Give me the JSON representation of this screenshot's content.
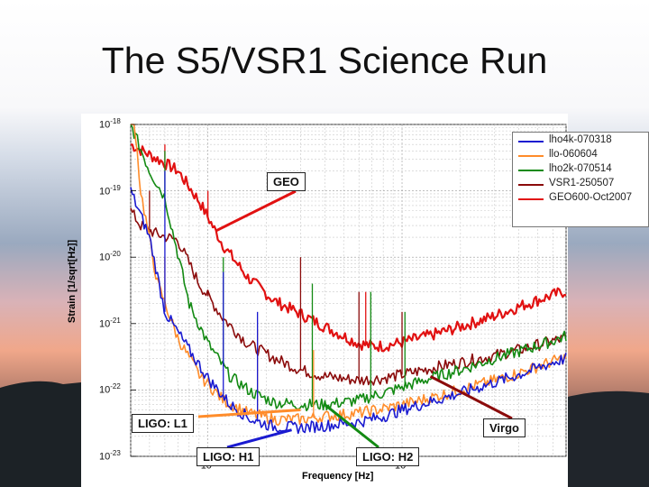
{
  "slide": {
    "title": "The S5/VSR1 Science Run"
  },
  "chart_data": {
    "type": "line",
    "xscale": "log",
    "yscale": "log",
    "xlim": [
      40,
      7000
    ],
    "ylim": [
      1e-23,
      1e-18
    ],
    "xlabel": "Frequency [Hz]",
    "ylabel": "Strain [1/sqrt[Hz]]",
    "y_ticks": [
      {
        "value": 1e-18,
        "base": "10",
        "exp": "-18"
      },
      {
        "value": 1e-19,
        "base": "10",
        "exp": "-19"
      },
      {
        "value": 1e-20,
        "base": "10",
        "exp": "-20"
      },
      {
        "value": 1e-21,
        "base": "10",
        "exp": "-21"
      },
      {
        "value": 1e-22,
        "base": "10",
        "exp": "-22"
      },
      {
        "value": 1e-23,
        "base": "10",
        "exp": "-23"
      }
    ],
    "x_ticks": [
      {
        "value": 100,
        "base": "10",
        "exp": "2"
      },
      {
        "value": 1000,
        "base": "10",
        "exp": "3"
      }
    ],
    "grid": true,
    "legend_position": "top-right",
    "series": [
      {
        "name": "lho4k-070318",
        "color": "#1a1ad0",
        "points": [
          [
            40,
            1e-19
          ],
          [
            50,
            2e-20
          ],
          [
            60,
            1.5e-21
          ],
          [
            80,
            4e-22
          ],
          [
            100,
            1.5e-22
          ],
          [
            130,
            6e-23
          ],
          [
            170,
            3.5e-23
          ],
          [
            220,
            2.8e-23
          ],
          [
            300,
            2.7e-23
          ],
          [
            400,
            2.9e-23
          ],
          [
            600,
            3.3e-23
          ],
          [
            800,
            4e-23
          ],
          [
            1000,
            5e-23
          ],
          [
            1500,
            7e-23
          ],
          [
            2000,
            9e-23
          ],
          [
            3000,
            1.3e-22
          ],
          [
            4000,
            1.7e-22
          ],
          [
            6000,
            2.6e-22
          ],
          [
            7000,
            3e-22
          ]
        ],
        "lines": [
          [
            60,
            2e-19
          ],
          [
            120,
            6e-21
          ],
          [
            180,
            1.5e-21
          ]
        ]
      },
      {
        "name": "llo-060604",
        "color": "#ff8c2a",
        "points": [
          [
            40,
            5e-18
          ],
          [
            45,
            1e-19
          ],
          [
            55,
            4e-21
          ],
          [
            70,
            6e-22
          ],
          [
            90,
            1.7e-22
          ],
          [
            120,
            7e-23
          ],
          [
            160,
            4.5e-23
          ],
          [
            220,
            3.6e-23
          ],
          [
            300,
            3.6e-23
          ],
          [
            400,
            4e-23
          ],
          [
            600,
            4.5e-23
          ],
          [
            800,
            5.2e-23
          ],
          [
            1000,
            6e-23
          ],
          [
            1500,
            8e-23
          ],
          [
            2000,
            1e-22
          ],
          [
            3000,
            1.4e-22
          ],
          [
            4000,
            1.8e-22
          ],
          [
            6000,
            2.7e-22
          ],
          [
            7000,
            3.1e-22
          ]
        ],
        "lines": [
          [
            60,
            1e-20
          ],
          [
            180,
            8e-22
          ],
          [
            350,
            4e-22
          ]
        ]
      },
      {
        "name": "lho2k-070514",
        "color": "#138a13",
        "points": [
          [
            40,
            1e-18
          ],
          [
            50,
            2e-19
          ],
          [
            60,
            8e-20
          ],
          [
            80,
            2e-21
          ],
          [
            100,
            5e-22
          ],
          [
            130,
            1.6e-22
          ],
          [
            170,
            9e-23
          ],
          [
            220,
            6.5e-23
          ],
          [
            300,
            6e-23
          ],
          [
            400,
            6e-23
          ],
          [
            600,
            7e-23
          ],
          [
            800,
            9e-23
          ],
          [
            1000,
            1.1e-22
          ],
          [
            1500,
            1.6e-22
          ],
          [
            2000,
            2e-22
          ],
          [
            3000,
            3e-22
          ],
          [
            4000,
            3.8e-22
          ],
          [
            6000,
            5.5e-22
          ],
          [
            7000,
            6.5e-22
          ]
        ],
        "lines": [
          [
            60,
            4e-19
          ],
          [
            120,
            1e-20
          ],
          [
            345,
            4e-21
          ],
          [
            690,
            3e-21
          ],
          [
            1035,
            1.5e-21
          ]
        ]
      },
      {
        "name": "VSR1-250507",
        "color": "#8b0b0b",
        "points": [
          [
            40,
            5e-20
          ],
          [
            45,
            3e-20
          ],
          [
            55,
            2.2e-20
          ],
          [
            70,
            1.8e-20
          ],
          [
            90,
            4e-21
          ],
          [
            120,
            1.2e-21
          ],
          [
            160,
            5e-22
          ],
          [
            220,
            3e-22
          ],
          [
            300,
            2e-22
          ],
          [
            400,
            1.6e-22
          ],
          [
            600,
            1.4e-22
          ],
          [
            800,
            1.5e-22
          ],
          [
            1000,
            1.7e-22
          ],
          [
            1500,
            2.2e-22
          ],
          [
            2000,
            2.6e-22
          ],
          [
            3000,
            3.3e-22
          ],
          [
            4000,
            4e-22
          ],
          [
            6000,
            5.5e-22
          ],
          [
            7000,
            6e-22
          ]
        ],
        "lines": [
          [
            50,
            1e-19
          ],
          [
            100,
            3e-21
          ],
          [
            300,
            1e-20
          ],
          [
            600,
            3e-21
          ],
          [
            1000,
            1.5e-21
          ]
        ]
      },
      {
        "name": "GEO600-Oct2007",
        "color": "#e11111",
        "points": [
          [
            40,
            5e-19
          ],
          [
            55,
            3e-19
          ],
          [
            70,
            2e-19
          ],
          [
            90,
            7e-20
          ],
          [
            120,
            1.5e-20
          ],
          [
            160,
            5e-21
          ],
          [
            220,
            2.2e-21
          ],
          [
            300,
            1.4e-21
          ],
          [
            400,
            9e-22
          ],
          [
            500,
            6.5e-22
          ],
          [
            600,
            5e-22
          ],
          [
            700,
            4.6e-22
          ],
          [
            800,
            4.6e-22
          ],
          [
            1000,
            5.2e-22
          ],
          [
            1500,
            7e-22
          ],
          [
            2000,
            9e-22
          ],
          [
            3000,
            1.3e-21
          ],
          [
            4000,
            1.8e-21
          ],
          [
            6000,
            2.7e-21
          ],
          [
            7000,
            3.1e-21
          ]
        ],
        "lines": [
          [
            60,
            5e-19
          ],
          [
            100,
            1e-19
          ],
          [
            650,
            3e-21
          ]
        ]
      }
    ],
    "annotations": [
      {
        "label": "GEO",
        "point_to": [
          110,
          2.5e-20
        ]
      },
      {
        "label": "LIGO: L1",
        "point_to": [
          300,
          5e-23
        ]
      },
      {
        "label": "LIGO: H1",
        "point_to": [
          270,
          2.5e-23
        ]
      },
      {
        "label": "LIGO: H2",
        "point_to": [
          400,
          6e-23
        ]
      },
      {
        "label": "Virgo",
        "point_to": [
          1400,
          1.6e-22
        ]
      }
    ]
  }
}
